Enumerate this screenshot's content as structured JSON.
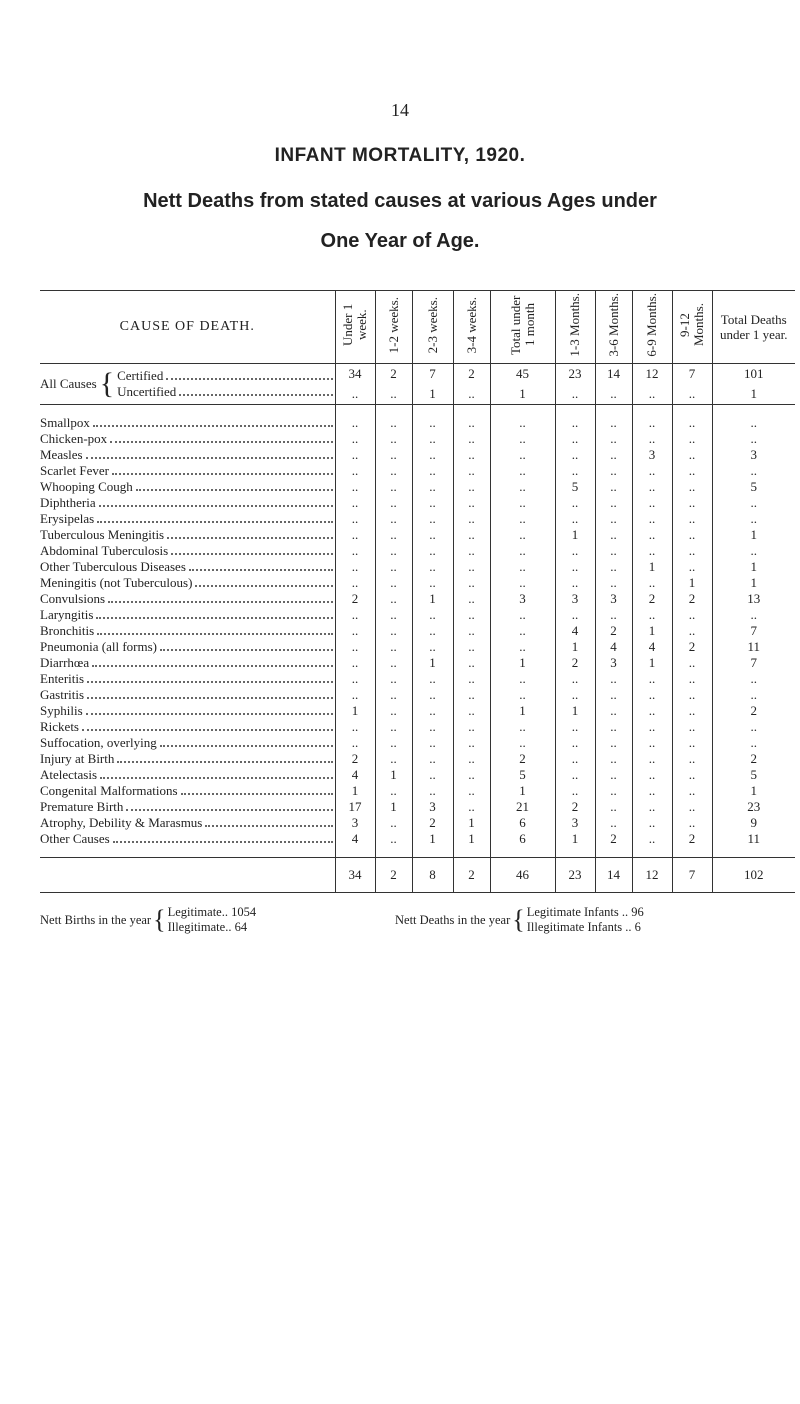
{
  "page_number": "14",
  "title": "INFANT MORTALITY, 1920.",
  "subtitle": [
    "Nett Deaths from stated causes at various Ages under",
    "One Year of Age."
  ],
  "table": {
    "headers": [
      "CAUSE OF DEATH.",
      "Under 1 week.",
      "1-2 weeks.",
      "2-3 weeks.",
      "3-4 weeks.",
      "Total under 1 month",
      "1-3 Months.",
      "3-6 Months.",
      "6-9 Months.",
      "9-12 Months.",
      "Total Deaths under 1 year."
    ],
    "all_causes": {
      "label": "All Causes",
      "rows": [
        {
          "label": "Certified",
          "values": [
            "34",
            "2",
            "7",
            "2",
            "45",
            "23",
            "14",
            "12",
            "7",
            "101"
          ]
        },
        {
          "label": "Uncertified",
          "values": [
            "..",
            "..",
            "1",
            "..",
            "1",
            "..",
            "..",
            "..",
            "..",
            "1"
          ]
        }
      ]
    },
    "rows": [
      {
        "cause": "Smallpox",
        "values": [
          "..",
          "..",
          "..",
          "..",
          "..",
          "..",
          "..",
          "..",
          "..",
          ".."
        ]
      },
      {
        "cause": "Chicken-pox",
        "values": [
          "..",
          "..",
          "..",
          "..",
          "..",
          "..",
          "..",
          "..",
          "..",
          ".."
        ]
      },
      {
        "cause": "Measles",
        "values": [
          "..",
          "..",
          "..",
          "..",
          "..",
          "..",
          "..",
          "3",
          "..",
          "3"
        ]
      },
      {
        "cause": "Scarlet Fever",
        "values": [
          "..",
          "..",
          "..",
          "..",
          "..",
          "..",
          "..",
          "..",
          "..",
          ".."
        ]
      },
      {
        "cause": "Whooping Cough",
        "values": [
          "..",
          "..",
          "..",
          "..",
          "..",
          "5",
          "..",
          "..",
          "..",
          "5"
        ]
      },
      {
        "cause": "Diphtheria",
        "values": [
          "..",
          "..",
          "..",
          "..",
          "..",
          "..",
          "..",
          "..",
          "..",
          ".."
        ]
      },
      {
        "cause": "Erysipelas",
        "values": [
          "..",
          "..",
          "..",
          "..",
          "..",
          "..",
          "..",
          "..",
          "..",
          ".."
        ]
      },
      {
        "cause": "Tuberculous Meningitis",
        "values": [
          "..",
          "..",
          "..",
          "..",
          "..",
          "1",
          "..",
          "..",
          "..",
          "1"
        ]
      },
      {
        "cause": "Abdominal Tuberculosis",
        "values": [
          "..",
          "..",
          "..",
          "..",
          "..",
          "..",
          "..",
          "..",
          "..",
          ".."
        ]
      },
      {
        "cause": "Other Tuberculous Diseases",
        "values": [
          "..",
          "..",
          "..",
          "..",
          "..",
          "..",
          "..",
          "1",
          "..",
          "1"
        ]
      },
      {
        "cause": "Meningitis (not Tuberculous)",
        "values": [
          "..",
          "..",
          "..",
          "..",
          "..",
          "..",
          "..",
          "..",
          "1",
          "1"
        ]
      },
      {
        "cause": "Convulsions",
        "values": [
          "2",
          "..",
          "1",
          "..",
          "3",
          "3",
          "3",
          "2",
          "2",
          "13"
        ]
      },
      {
        "cause": "Laryngitis",
        "values": [
          "..",
          "..",
          "..",
          "..",
          "..",
          "..",
          "..",
          "..",
          "..",
          ".."
        ]
      },
      {
        "cause": "Bronchitis",
        "values": [
          "..",
          "..",
          "..",
          "..",
          "..",
          "4",
          "2",
          "1",
          "..",
          "7"
        ]
      },
      {
        "cause": "Pneumonia (all forms)",
        "values": [
          "..",
          "..",
          "..",
          "..",
          "..",
          "1",
          "4",
          "4",
          "2",
          "11"
        ]
      },
      {
        "cause": "Diarrhœa",
        "values": [
          "..",
          "..",
          "1",
          "..",
          "1",
          "2",
          "3",
          "1",
          "..",
          "7"
        ]
      },
      {
        "cause": "Enteritis",
        "values": [
          "..",
          "..",
          "..",
          "..",
          "..",
          "..",
          "..",
          "..",
          "..",
          ".."
        ]
      },
      {
        "cause": "Gastritis",
        "values": [
          "..",
          "..",
          "..",
          "..",
          "..",
          "..",
          "..",
          "..",
          "..",
          ".."
        ]
      },
      {
        "cause": "Syphilis",
        "values": [
          "1",
          "..",
          "..",
          "..",
          "1",
          "1",
          "..",
          "..",
          "..",
          "2"
        ]
      },
      {
        "cause": "Rickets",
        "values": [
          "..",
          "..",
          "..",
          "..",
          "..",
          "..",
          "..",
          "..",
          "..",
          ".."
        ]
      },
      {
        "cause": "Suffocation, overlying",
        "values": [
          "..",
          "..",
          "..",
          "..",
          "..",
          "..",
          "..",
          "..",
          "..",
          ".."
        ]
      },
      {
        "cause": "Injury at Birth",
        "values": [
          "2",
          "..",
          "..",
          "..",
          "2",
          "..",
          "..",
          "..",
          "..",
          "2"
        ]
      },
      {
        "cause": "Atelectasis",
        "values": [
          "4",
          "1",
          "..",
          "..",
          "5",
          "..",
          "..",
          "..",
          "..",
          "5"
        ]
      },
      {
        "cause": "Congenital Malformations",
        "values": [
          "1",
          "..",
          "..",
          "..",
          "1",
          "..",
          "..",
          "..",
          "..",
          "1"
        ]
      },
      {
        "cause": "Premature Birth",
        "values": [
          "17",
          "1",
          "3",
          "..",
          "21",
          "2",
          "..",
          "..",
          "..",
          "23"
        ]
      },
      {
        "cause": "Atrophy, Debility & Marasmus",
        "values": [
          "3",
          "..",
          "2",
          "1",
          "6",
          "3",
          "..",
          "..",
          "..",
          "9"
        ]
      },
      {
        "cause": "Other Causes",
        "values": [
          "4",
          "..",
          "1",
          "1",
          "6",
          "1",
          "2",
          "..",
          "2",
          "11"
        ]
      }
    ],
    "totals": [
      "34",
      "2",
      "8",
      "2",
      "46",
      "23",
      "14",
      "12",
      "7",
      "102"
    ]
  },
  "footer": {
    "births": {
      "label": "Nett Births in the year",
      "items": [
        {
          "label": "Legitimate..",
          "value": "1054"
        },
        {
          "label": "Illegitimate..",
          "value": "64"
        }
      ]
    },
    "deaths": {
      "label": "Nett Deaths in the year",
      "items": [
        {
          "label": "Legitimate Infants ..",
          "value": "96"
        },
        {
          "label": "Illegitimate Infants ..",
          "value": "6"
        }
      ]
    }
  }
}
